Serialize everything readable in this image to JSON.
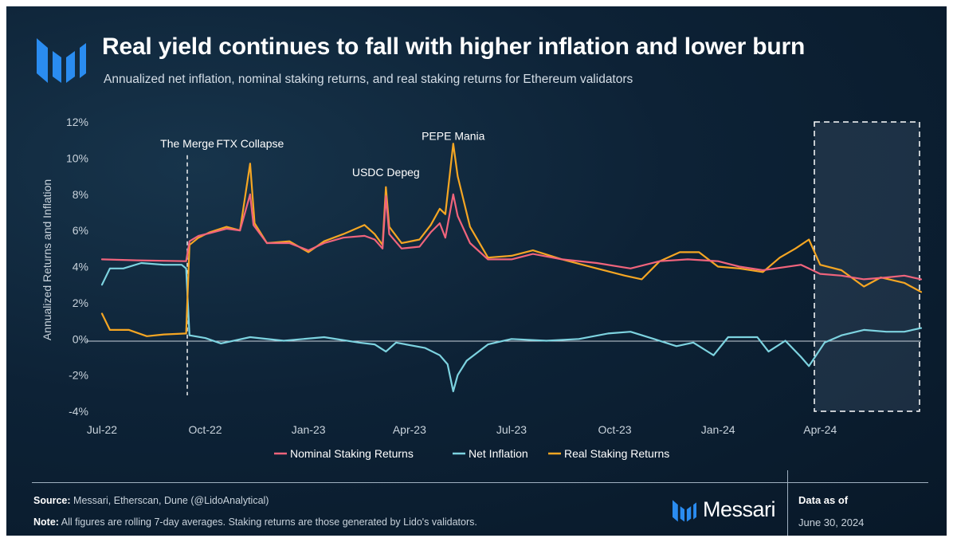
{
  "header": {
    "title": "Real yield continues to fall with higher inflation and lower burn",
    "subtitle": "Annualized net inflation, nominal staking returns, and real staking returns for Ethereum validators"
  },
  "footer": {
    "source_label": "Source:",
    "source_text": "Messari, Etherscan, Dune (@LidoAnalytical)",
    "note_label": "Note:",
    "note_text": "All figures are rolling 7-day averages. Staking returns are those generated by Lido's validators.",
    "brand": "Messari",
    "asof_label": "Data as of",
    "asof_date": "June 30, 2024"
  },
  "colors": {
    "nominal": "#f0647c",
    "net_inflation": "#7dd3e0",
    "real": "#f5a623",
    "background": "#0d2236",
    "logo": "#2a8cf0"
  },
  "chart_data": {
    "type": "line",
    "ylabel": "Annualized Returns and Inflation",
    "xlabel": "",
    "ylim": [
      -4,
      12
    ],
    "y_ticks": [
      "12%",
      "10%",
      "8%",
      "6%",
      "4%",
      "2%",
      "0%",
      "-2%",
      "-4%"
    ],
    "x_ticks": [
      "Jul-22",
      "Oct-22",
      "Jan-23",
      "Apr-23",
      "Jul-23",
      "Oct-23",
      "Jan-24",
      "Apr-24"
    ],
    "x_range": [
      "2022-07-01",
      "2024-06-30"
    ],
    "legend_position": "bottom",
    "grid": false,
    "annotations": [
      {
        "label": "The Merge",
        "date": "2022-09-15",
        "y": 10.6,
        "vline": true
      },
      {
        "label": "FTX Collapse",
        "date": "2022-11-10",
        "y": 10.6
      },
      {
        "label": "USDC Depeg",
        "date": "2023-03-11",
        "y": 9.0
      },
      {
        "label": "PEPE Mania",
        "date": "2023-05-10",
        "y": 11.0
      }
    ],
    "highlight_range": {
      "start": "2024-04-01",
      "end": "2024-06-30"
    },
    "series": [
      {
        "name": "Nominal Staking Returns",
        "key": "nominal",
        "points": [
          [
            "2022-07-01",
            4.4
          ],
          [
            "2022-08-01",
            4.35
          ],
          [
            "2022-09-14",
            4.3
          ],
          [
            "2022-09-17",
            5.4
          ],
          [
            "2022-09-25",
            5.7
          ],
          [
            "2022-10-05",
            5.85
          ],
          [
            "2022-10-20",
            6.1
          ],
          [
            "2022-11-01",
            6.0
          ],
          [
            "2022-11-10",
            8.0
          ],
          [
            "2022-11-13",
            6.3
          ],
          [
            "2022-11-25",
            5.3
          ],
          [
            "2022-12-15",
            5.3
          ],
          [
            "2023-01-01",
            4.9
          ],
          [
            "2023-01-15",
            5.3
          ],
          [
            "2023-02-01",
            5.6
          ],
          [
            "2023-02-20",
            5.7
          ],
          [
            "2023-03-01",
            5.5
          ],
          [
            "2023-03-08",
            5.0
          ],
          [
            "2023-03-11",
            7.9
          ],
          [
            "2023-03-14",
            5.8
          ],
          [
            "2023-03-25",
            5.0
          ],
          [
            "2023-04-10",
            5.1
          ],
          [
            "2023-04-20",
            5.9
          ],
          [
            "2023-04-28",
            6.4
          ],
          [
            "2023-05-03",
            5.6
          ],
          [
            "2023-05-10",
            8.0
          ],
          [
            "2023-05-14",
            6.8
          ],
          [
            "2023-05-25",
            5.3
          ],
          [
            "2023-06-10",
            4.4
          ],
          [
            "2023-07-01",
            4.4
          ],
          [
            "2023-07-20",
            4.7
          ],
          [
            "2023-08-15",
            4.4
          ],
          [
            "2023-09-15",
            4.2
          ],
          [
            "2023-10-15",
            3.9
          ],
          [
            "2023-11-10",
            4.3
          ],
          [
            "2023-12-05",
            4.4
          ],
          [
            "2024-01-01",
            4.3
          ],
          [
            "2024-01-20",
            4.0
          ],
          [
            "2024-02-10",
            3.8
          ],
          [
            "2024-03-15",
            4.1
          ],
          [
            "2024-04-01",
            3.6
          ],
          [
            "2024-04-20",
            3.5
          ],
          [
            "2024-05-10",
            3.3
          ],
          [
            "2024-05-30",
            3.4
          ],
          [
            "2024-06-15",
            3.5
          ],
          [
            "2024-06-30",
            3.3
          ]
        ]
      },
      {
        "name": "Net Inflation",
        "key": "net_inflation",
        "points": [
          [
            "2022-07-01",
            3.0
          ],
          [
            "2022-07-08",
            3.9
          ],
          [
            "2022-07-20",
            3.9
          ],
          [
            "2022-08-05",
            4.2
          ],
          [
            "2022-08-25",
            4.1
          ],
          [
            "2022-09-10",
            4.1
          ],
          [
            "2022-09-14",
            3.9
          ],
          [
            "2022-09-17",
            0.2
          ],
          [
            "2022-10-01",
            0.05
          ],
          [
            "2022-10-15",
            -0.25
          ],
          [
            "2022-11-10",
            0.1
          ],
          [
            "2022-12-10",
            -0.1
          ],
          [
            "2023-01-15",
            0.1
          ],
          [
            "2023-02-15",
            -0.2
          ],
          [
            "2023-03-01",
            -0.3
          ],
          [
            "2023-03-11",
            -0.7
          ],
          [
            "2023-03-20",
            -0.2
          ],
          [
            "2023-04-15",
            -0.5
          ],
          [
            "2023-04-28",
            -0.9
          ],
          [
            "2023-05-05",
            -1.4
          ],
          [
            "2023-05-10",
            -2.9
          ],
          [
            "2023-05-14",
            -2.0
          ],
          [
            "2023-05-22",
            -1.2
          ],
          [
            "2023-06-10",
            -0.3
          ],
          [
            "2023-07-01",
            0.0
          ],
          [
            "2023-08-01",
            -0.1
          ],
          [
            "2023-08-30",
            0.0
          ],
          [
            "2023-09-25",
            0.3
          ],
          [
            "2023-10-15",
            0.4
          ],
          [
            "2023-11-05",
            0.0
          ],
          [
            "2023-11-25",
            -0.4
          ],
          [
            "2023-12-10",
            -0.2
          ],
          [
            "2023-12-28",
            -0.9
          ],
          [
            "2024-01-10",
            0.1
          ],
          [
            "2024-02-05",
            0.1
          ],
          [
            "2024-02-15",
            -0.7
          ],
          [
            "2024-03-01",
            -0.1
          ],
          [
            "2024-03-15",
            -1.0
          ],
          [
            "2024-03-22",
            -1.5
          ],
          [
            "2024-04-05",
            -0.2
          ],
          [
            "2024-04-20",
            0.2
          ],
          [
            "2024-05-10",
            0.5
          ],
          [
            "2024-05-30",
            0.4
          ],
          [
            "2024-06-15",
            0.4
          ],
          [
            "2024-06-30",
            0.6
          ]
        ]
      },
      {
        "name": "Real Staking Returns",
        "key": "real",
        "points": [
          [
            "2022-07-01",
            1.4
          ],
          [
            "2022-07-08",
            0.5
          ],
          [
            "2022-07-25",
            0.5
          ],
          [
            "2022-08-10",
            0.15
          ],
          [
            "2022-08-25",
            0.25
          ],
          [
            "2022-09-14",
            0.3
          ],
          [
            "2022-09-17",
            5.2
          ],
          [
            "2022-09-25",
            5.6
          ],
          [
            "2022-10-05",
            5.9
          ],
          [
            "2022-10-20",
            6.2
          ],
          [
            "2022-11-01",
            6.0
          ],
          [
            "2022-11-10",
            9.7
          ],
          [
            "2022-11-14",
            6.4
          ],
          [
            "2022-11-25",
            5.3
          ],
          [
            "2022-12-15",
            5.4
          ],
          [
            "2023-01-01",
            4.8
          ],
          [
            "2023-01-15",
            5.4
          ],
          [
            "2023-02-01",
            5.8
          ],
          [
            "2023-02-20",
            6.3
          ],
          [
            "2023-03-01",
            5.8
          ],
          [
            "2023-03-08",
            5.2
          ],
          [
            "2023-03-11",
            8.4
          ],
          [
            "2023-03-14",
            6.2
          ],
          [
            "2023-03-25",
            5.3
          ],
          [
            "2023-04-10",
            5.5
          ],
          [
            "2023-04-20",
            6.3
          ],
          [
            "2023-04-28",
            7.2
          ],
          [
            "2023-05-03",
            6.9
          ],
          [
            "2023-05-10",
            10.8
          ],
          [
            "2023-05-14",
            9.0
          ],
          [
            "2023-05-25",
            6.2
          ],
          [
            "2023-06-10",
            4.5
          ],
          [
            "2023-07-01",
            4.6
          ],
          [
            "2023-07-20",
            4.9
          ],
          [
            "2023-08-15",
            4.4
          ],
          [
            "2023-09-15",
            3.9
          ],
          [
            "2023-10-10",
            3.5
          ],
          [
            "2023-10-25",
            3.3
          ],
          [
            "2023-11-10",
            4.3
          ],
          [
            "2023-11-28",
            4.8
          ],
          [
            "2023-12-15",
            4.8
          ],
          [
            "2024-01-01",
            4.0
          ],
          [
            "2024-01-20",
            3.9
          ],
          [
            "2024-02-10",
            3.7
          ],
          [
            "2024-02-25",
            4.5
          ],
          [
            "2024-03-10",
            5.0
          ],
          [
            "2024-03-22",
            5.5
          ],
          [
            "2024-04-01",
            4.1
          ],
          [
            "2024-04-20",
            3.8
          ],
          [
            "2024-05-10",
            2.9
          ],
          [
            "2024-05-25",
            3.4
          ],
          [
            "2024-06-15",
            3.1
          ],
          [
            "2024-06-30",
            2.6
          ]
        ]
      }
    ]
  }
}
